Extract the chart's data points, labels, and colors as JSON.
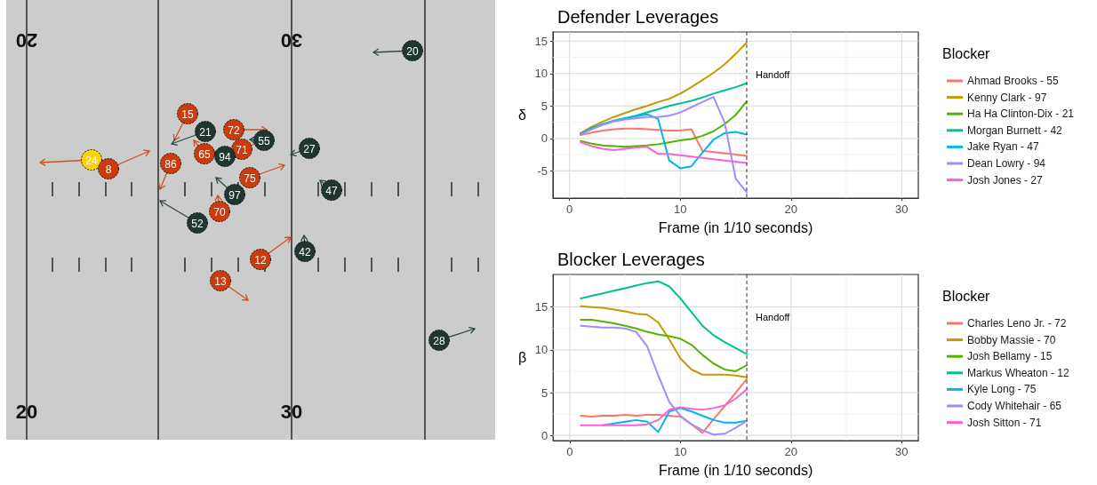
{
  "chart_data": [
    {
      "type": "other",
      "annotations": [
        "20",
        "30",
        "20",
        "30",
        "24",
        "8",
        "86",
        "15",
        "65",
        "72",
        "71",
        "75",
        "70",
        "12",
        "13",
        "21",
        "94",
        "55",
        "27",
        "47",
        "97",
        "52",
        "42",
        "20",
        "28"
      ]
    },
    {
      "type": "line",
      "title": "Defender Leverages",
      "xlabel": "Frame (in 1/10 seconds)",
      "ylabel": "δ",
      "legend_title": "Blocker",
      "legend": "right",
      "grid": true,
      "marker": "none",
      "line_style": "solid",
      "xlim": [
        -1.5,
        31.5
      ],
      "xticks": [
        0,
        10,
        20,
        30
      ],
      "ylim": [
        -9.2,
        16.4
      ],
      "yticks": [
        -5,
        0,
        5,
        10,
        15
      ],
      "ref_lines": [
        {
          "axis": "x",
          "value": 16,
          "label": "Handoff",
          "line_style": "dashed",
          "color": "#333333"
        }
      ],
      "x": [
        1,
        2,
        3,
        4,
        5,
        6,
        7,
        8,
        9,
        10,
        11,
        12,
        13,
        14,
        15,
        16
      ],
      "series": [
        {
          "name": "Ahmad Brooks - 55",
          "color": "#f8766d",
          "values": [
            0.5,
            0.9,
            1.2,
            1.4,
            1.5,
            1.5,
            1.4,
            1.3,
            1.2,
            1.2,
            1.4,
            -1.9,
            -2.1,
            -2.3,
            -2.5,
            -2.7
          ]
        },
        {
          "name": "Kenny Clark - 97",
          "color": "#c49a00",
          "values": [
            0.8,
            1.8,
            2.6,
            3.3,
            3.9,
            4.5,
            5.0,
            5.6,
            6.1,
            6.9,
            7.9,
            9.0,
            10.1,
            11.4,
            13.0,
            14.8
          ]
        },
        {
          "name": "Ha Ha Clinton-Dix - 21",
          "color": "#53b400",
          "values": [
            -0.4,
            -0.8,
            -1.1,
            -1.2,
            -1.3,
            -1.2,
            -1.1,
            -0.9,
            -0.6,
            -0.3,
            -0.1,
            0.4,
            1.1,
            2.2,
            3.6,
            5.7
          ]
        },
        {
          "name": "Morgan Burnett - 42",
          "color": "#00c094",
          "values": [
            0.7,
            1.6,
            2.2,
            2.7,
            3.1,
            3.5,
            4.0,
            4.5,
            5.0,
            5.4,
            5.8,
            6.3,
            6.9,
            7.4,
            7.9,
            8.5
          ]
        },
        {
          "name": "Jake Ryan - 47",
          "color": "#00b6eb",
          "values": [
            0.6,
            1.5,
            2.2,
            2.7,
            3.1,
            3.4,
            3.7,
            3.0,
            -3.4,
            -4.6,
            -4.3,
            -2.2,
            -0.2,
            0.8,
            1.0,
            0.6
          ]
        },
        {
          "name": "Dean Lowry - 94",
          "color": "#a58aff",
          "values": [
            0.6,
            1.4,
            2.1,
            2.6,
            2.9,
            3.1,
            3.3,
            3.3,
            3.5,
            4.0,
            4.8,
            5.6,
            6.4,
            2.5,
            -6.2,
            -8.3
          ]
        },
        {
          "name": "Josh Jones - 27",
          "color": "#fb61d7",
          "values": [
            -0.6,
            -1.2,
            -1.6,
            -1.8,
            -1.6,
            -1.4,
            -1.3,
            -2.4,
            -2.4,
            -2.6,
            -2.8,
            -3.0,
            -3.2,
            -3.4,
            -3.6,
            -3.8
          ]
        }
      ]
    },
    {
      "type": "line",
      "title": "Blocker Leverages",
      "xlabel": "Frame (in 1/10 seconds)",
      "ylabel": "β",
      "legend_title": "Blocker",
      "legend": "right",
      "grid": true,
      "marker": "none",
      "line_style": "solid",
      "xlim": [
        -1.5,
        31.5
      ],
      "xticks": [
        0,
        10,
        20,
        30
      ],
      "ylim": [
        -0.6,
        18.8
      ],
      "yticks": [
        0,
        5,
        10,
        15
      ],
      "ref_lines": [
        {
          "axis": "x",
          "value": 16,
          "label": "Handoff",
          "line_style": "dashed",
          "color": "#333333"
        }
      ],
      "x": [
        1,
        2,
        3,
        4,
        5,
        6,
        7,
        8,
        9,
        10,
        11,
        12,
        13,
        14,
        15,
        16
      ],
      "series": [
        {
          "name": "Charles Leno Jr. - 72",
          "color": "#f8766d",
          "values": [
            2.3,
            2.2,
            2.3,
            2.3,
            2.4,
            2.3,
            2.4,
            2.4,
            2.3,
            2.2,
            1.3,
            0.3,
            1.9,
            3.4,
            5.0,
            6.6
          ]
        },
        {
          "name": "Bobby Massie - 70",
          "color": "#c49a00",
          "values": [
            15.1,
            15.0,
            14.9,
            14.7,
            14.5,
            14.2,
            14.1,
            13.2,
            11.2,
            9.0,
            7.7,
            7.1,
            7.1,
            7.1,
            7.0,
            6.8
          ]
        },
        {
          "name": "Josh Bellamy - 15",
          "color": "#53b400",
          "values": [
            13.5,
            13.5,
            13.3,
            13.1,
            12.8,
            12.5,
            12.1,
            11.8,
            11.6,
            11.3,
            10.6,
            9.4,
            8.4,
            7.7,
            7.5,
            8.2
          ]
        },
        {
          "name": "Markus Wheaton - 12",
          "color": "#00c094",
          "values": [
            16.0,
            16.3,
            16.6,
            16.9,
            17.2,
            17.5,
            17.8,
            18.0,
            17.4,
            16.0,
            14.4,
            12.8,
            11.7,
            10.9,
            10.2,
            9.5
          ]
        },
        {
          "name": "Kyle Long - 75",
          "color": "#00b6eb",
          "values": [
            null,
            null,
            1.2,
            1.4,
            1.6,
            1.8,
            1.6,
            0.4,
            2.8,
            3.2,
            2.8,
            2.3,
            1.8,
            1.5,
            1.5,
            1.7
          ]
        },
        {
          "name": "Cody Whitehair - 65",
          "color": "#a58aff",
          "values": [
            12.8,
            12.7,
            12.6,
            12.6,
            12.5,
            12.1,
            10.4,
            7.0,
            3.9,
            2.3,
            1.3,
            0.6,
            0.1,
            0.2,
            0.9,
            1.7
          ]
        },
        {
          "name": "Josh Sitton - 71",
          "color": "#fb61d7",
          "values": [
            1.2,
            1.2,
            1.2,
            1.2,
            1.2,
            1.2,
            1.3,
            1.8,
            3.0,
            3.3,
            3.1,
            3.0,
            3.2,
            3.5,
            4.3,
            5.4
          ]
        }
      ]
    }
  ]
}
